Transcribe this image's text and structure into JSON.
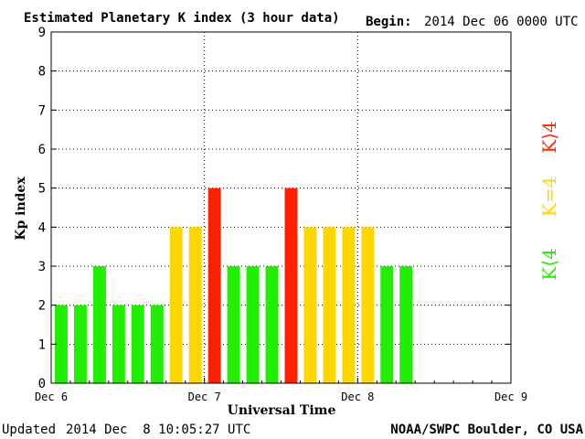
{
  "header": {
    "title": "Estimated Planetary K index (3 hour data)",
    "begin_label": "Begin:",
    "begin_value": "2014 Dec 06 0000 UTC"
  },
  "footer": {
    "updated_label": "Updated",
    "updated_value": "2014 Dec  8 10:05:27 UTC",
    "source": "NOAA/SWPC Boulder, CO USA"
  },
  "legend": {
    "high": "K⟩4",
    "equal": "K=4",
    "low": "K⟨4"
  },
  "colors": {
    "low": "#22ee00",
    "equal": "#ffd700",
    "high": "#ff2200",
    "grid": "#000000"
  },
  "chart_data": {
    "type": "bar",
    "ylabel": "Kp index",
    "xlabel": "Universal Time",
    "ylim": [
      0,
      9
    ],
    "yticks": [
      "0",
      "1",
      "2",
      "3",
      "4",
      "5",
      "6",
      "7",
      "8",
      "9"
    ],
    "xticks": [
      "Dec 6",
      "Dec 7",
      "Dec 8",
      "Dec 9"
    ],
    "grid": true,
    "bins_per_day": 8,
    "days": 3,
    "values": [
      2,
      2,
      3,
      2,
      2,
      2,
      4,
      4,
      5,
      3,
      3,
      3,
      5,
      4,
      4,
      4,
      4,
      3,
      3
    ]
  }
}
